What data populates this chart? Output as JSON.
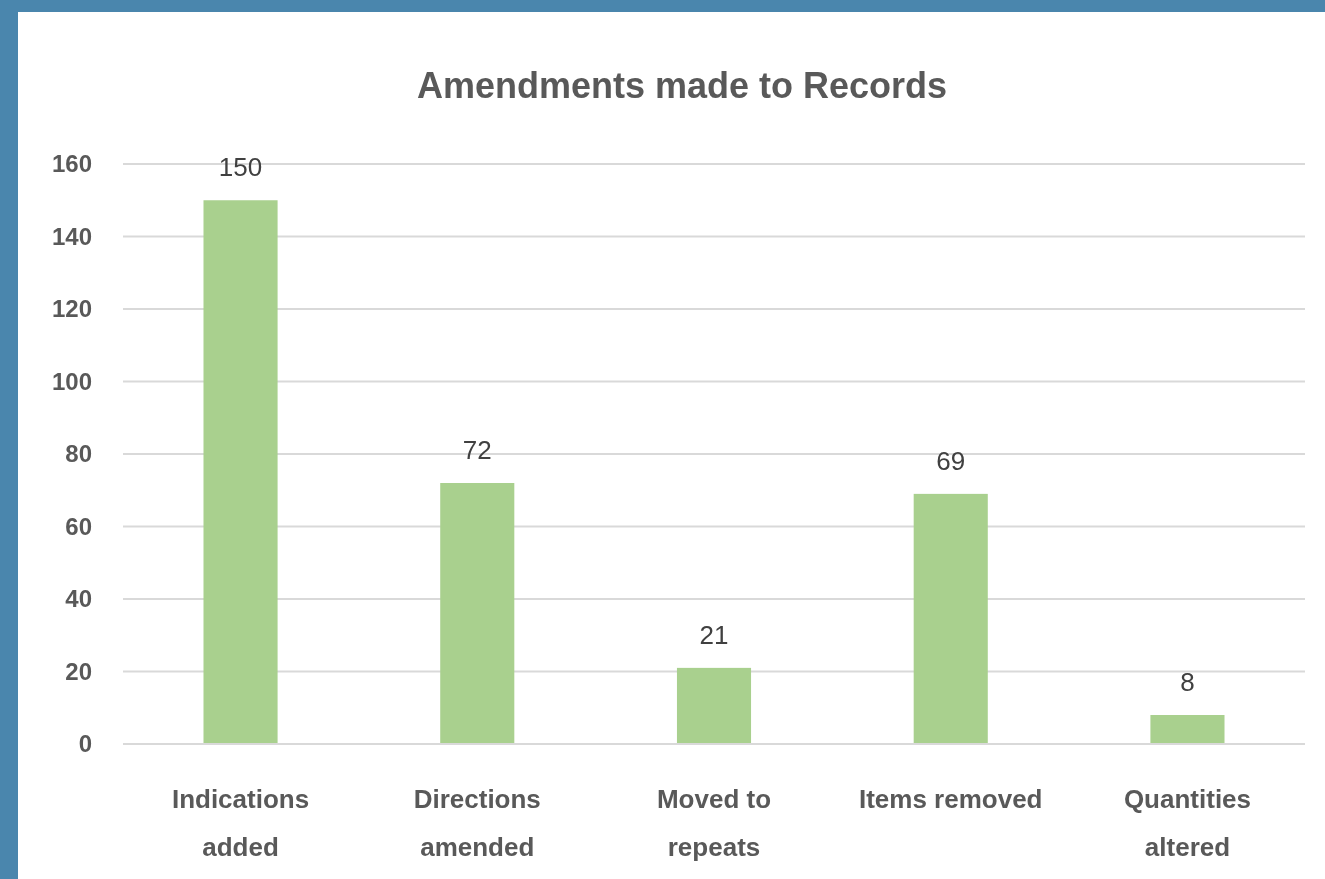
{
  "chart_data": {
    "type": "bar",
    "title": "Amendments made to Records",
    "categories": [
      "Indications added",
      "Directions amended",
      "Moved to repeats",
      "Items removed",
      "Quantities altered"
    ],
    "values": [
      150,
      72,
      21,
      69,
      8
    ],
    "color": "#a9d08e",
    "ylim": [
      0,
      160
    ],
    "yticks": [
      0,
      20,
      40,
      60,
      80,
      100,
      120,
      140,
      160
    ],
    "grid": "y",
    "data_labels": true
  }
}
